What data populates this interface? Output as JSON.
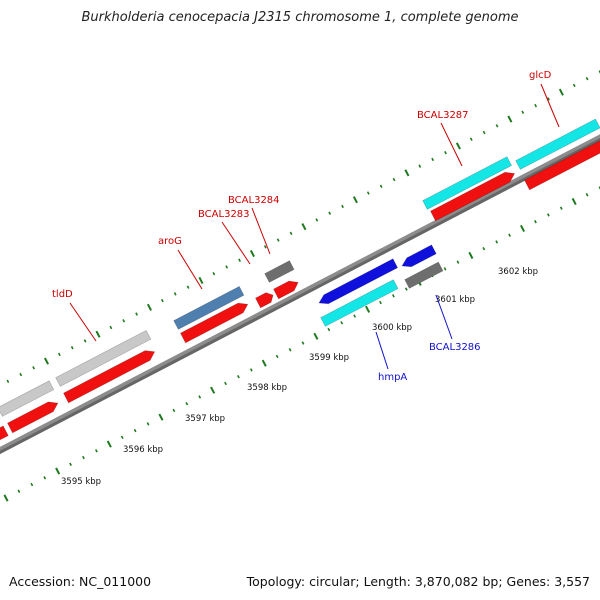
{
  "title": "Burkholderia cenocepacia J2315 chromosome 1, complete genome",
  "footer": {
    "accession": "Accession: NC_011000",
    "summary": "Topology: circular; Length: 3,870,082 bp; Genes: 3,557"
  },
  "colors": {
    "backbone": "#8c8c8c",
    "tick": "#1f7a1f",
    "cds": "#f01010",
    "gene_light_gray": "#c8c8c8",
    "gene_steel_blue": "#4f7fae",
    "gene_dark_gray": "#6e6e6e",
    "gene_cyan": "#14e6e6",
    "gene_blue": "#1010dd",
    "label_red": "#cc0000",
    "label_blue": "#1010cc"
  },
  "scale_labels": [
    "3595 kbp",
    "3596 kbp",
    "3597 kbp",
    "3598 kbp",
    "3599 kbp",
    "3600 kbp",
    "3601 kbp",
    "3602 kbp"
  ],
  "labels": [
    {
      "text": "tldD",
      "color": "label_red"
    },
    {
      "text": "aroG",
      "color": "label_red"
    },
    {
      "text": "BCAL3283",
      "color": "label_red"
    },
    {
      "text": "BCAL3284",
      "color": "label_red"
    },
    {
      "text": "BCAL3287",
      "color": "label_red"
    },
    {
      "text": "glcD",
      "color": "label_red"
    },
    {
      "text": "hmpA",
      "color": "label_blue"
    },
    {
      "text": "BCAL3286",
      "color": "label_blue"
    }
  ]
}
